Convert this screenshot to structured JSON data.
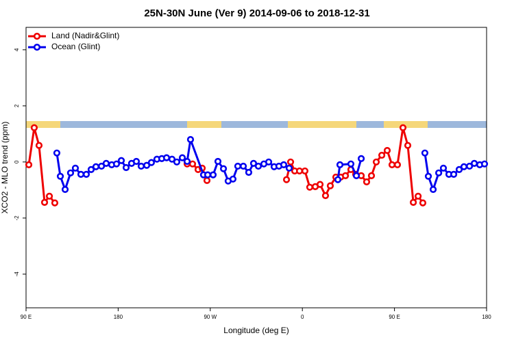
{
  "chart_data": {
    "type": "line",
    "title": "25N-30N June (Ver 9)   2014-09-06 to 2018-12-31",
    "xlabel": "Longitude (deg E)",
    "ylabel": "XCO2 - MLO trend (ppm)",
    "xlim": [
      90,
      540
    ],
    "xticks": [
      {
        "value": 90,
        "label": "90 E"
      },
      180,
      {
        "value": 270,
        "label": "90 W"
      },
      {
        "value": 360,
        "label": "0"
      },
      {
        "value": 450,
        "label": "90 E"
      },
      {
        "value": 540,
        "label": "180"
      }
    ],
    "ylim": [
      -5.2,
      4.8
    ],
    "yticks": [
      -4,
      -2,
      0,
      2,
      4
    ],
    "legend": "top-left",
    "series": [
      {
        "name": "Land (Nadir&Glint)",
        "color": "#ee0000",
        "x": [
          92.7,
          98.0,
          102.7,
          108.1,
          112.8,
          118.1,
          null,
          247.4,
          252.7,
          258.1,
          262.1,
          266.8,
          null,
          344.5,
          348.5,
          352.5,
          357.2,
          362.5,
          367.2,
          372.6,
          377.3,
          382.6,
          387.3,
          392.7,
          397.4,
          402.1,
          407.4,
          412.1,
          417.5,
          422.8,
          427.5,
          432.2,
          437.6,
          442.9,
          447.6,
          452.9,
          458.3,
          463.0,
          468.4,
          473.1,
          477.7
        ],
        "values": [
          -0.1,
          1.22,
          0.59,
          -1.44,
          -1.22,
          -1.46,
          null,
          -0.07,
          -0.07,
          -0.27,
          -0.22,
          -0.66,
          null,
          -0.63,
          0.0,
          -0.32,
          -0.32,
          -0.32,
          -0.9,
          -0.88,
          -0.8,
          -1.2,
          -0.85,
          -0.54,
          -0.54,
          -0.49,
          -0.27,
          -0.44,
          -0.49,
          -0.71,
          -0.49,
          0.0,
          0.24,
          0.41,
          -0.1,
          -0.1,
          1.22,
          0.59,
          -1.44,
          -1.22,
          -1.46
        ]
      },
      {
        "name": "Ocean (Glint)",
        "color": "#0000ee",
        "x": [
          120.1,
          123.5,
          128.2,
          133.5,
          138.2,
          143.6,
          148.9,
          153.6,
          158.3,
          163.7,
          168.3,
          173.7,
          178.4,
          183.1,
          187.8,
          193.1,
          197.8,
          202.5,
          207.9,
          212.5,
          217.9,
          222.6,
          227.3,
          232.6,
          237.3,
          242.7,
          247.4,
          250.7,
          263.4,
          267.5,
          272.8,
          277.5,
          282.9,
          287.5,
          292.2,
          296.9,
          302.3,
          307.6,
          312.3,
          317.0,
          322.4,
          327.1,
          332.4,
          337.1,
          341.8,
          347.1,
          null,
          394.7,
          396.7,
          407.4,
          412.8,
          417.5,
          null,
          479.7,
          483.1,
          487.8,
          493.2,
          497.8,
          503.2,
          507.9,
          513.2,
          517.9,
          523.3,
          528.0,
          533.3,
          538.0
        ],
        "values": [
          0.32,
          -0.51,
          -0.98,
          -0.39,
          -0.22,
          -0.44,
          -0.44,
          -0.27,
          -0.17,
          -0.15,
          -0.05,
          -0.1,
          -0.07,
          0.05,
          -0.2,
          -0.05,
          0.02,
          -0.15,
          -0.12,
          -0.02,
          0.1,
          0.12,
          0.15,
          0.1,
          0.0,
          0.15,
          0.02,
          0.8,
          -0.46,
          -0.46,
          -0.46,
          0.02,
          -0.24,
          -0.68,
          -0.61,
          -0.15,
          -0.15,
          -0.37,
          -0.05,
          -0.15,
          -0.07,
          0.0,
          -0.17,
          -0.15,
          -0.1,
          -0.22,
          null,
          -0.63,
          -0.1,
          -0.07,
          -0.49,
          0.12,
          null,
          0.32,
          -0.51,
          -0.98,
          -0.39,
          -0.22,
          -0.44,
          -0.44,
          -0.27,
          -0.17,
          -0.15,
          -0.05,
          -0.1,
          -0.07
        ]
      }
    ]
  }
}
